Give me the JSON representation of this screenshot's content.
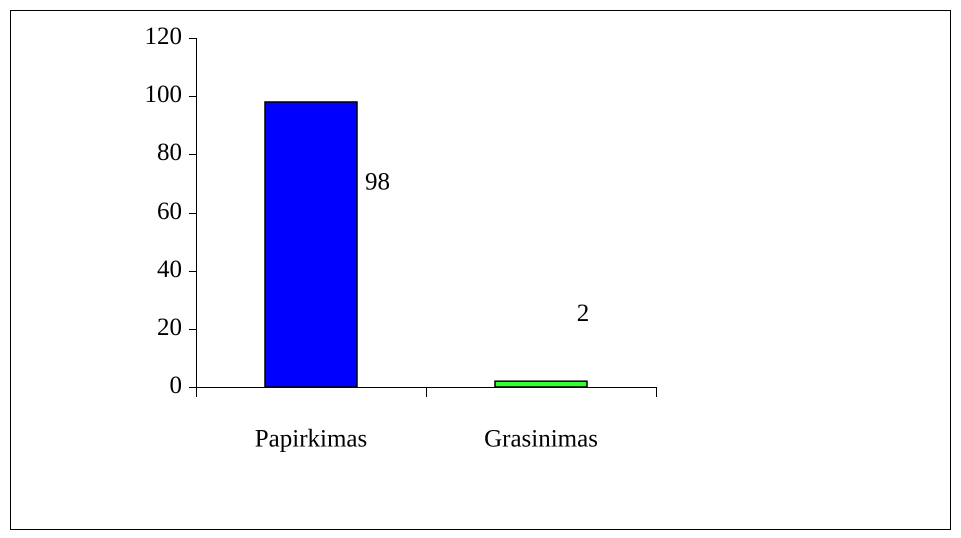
{
  "chart_data": {
    "type": "bar",
    "categories": [
      "Papirkimas",
      "Grasinimas"
    ],
    "values": [
      98,
      2
    ],
    "colors": [
      "#0000ff",
      "#33ff33"
    ],
    "ylim": [
      0,
      120
    ],
    "yticks": [
      0,
      20,
      40,
      60,
      80,
      100,
      120
    ],
    "grid": false
  }
}
